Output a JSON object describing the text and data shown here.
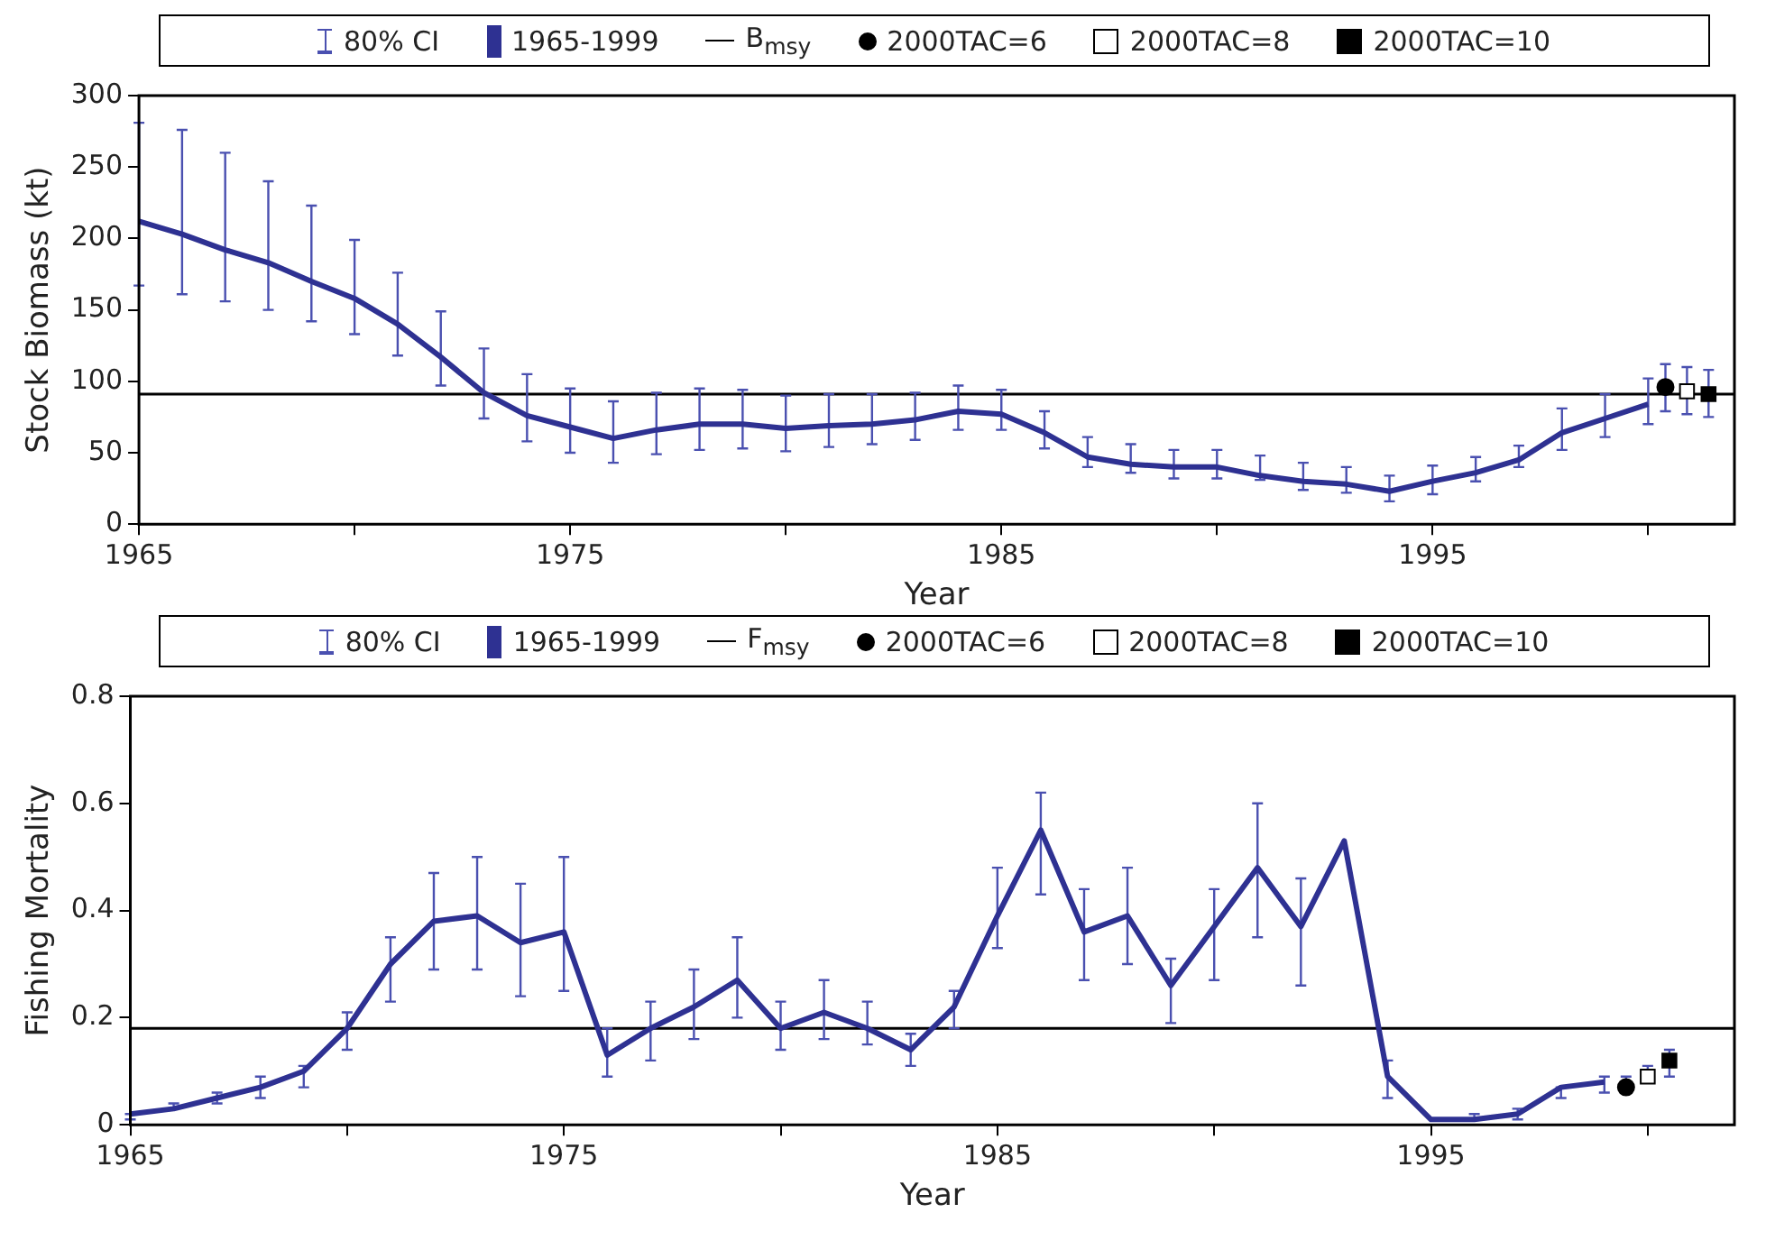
{
  "chart_data": [
    {
      "type": "line",
      "xlabel": "Year",
      "ylabel": "Stock Biomass (kt)",
      "annotations": [
        "80% CI"
      ],
      "legend": "top",
      "grid": false,
      "xlim": [
        1965,
        2002
      ],
      "xticks": [
        1965,
        {
          "value": 1970,
          "label": null
        },
        1975,
        {
          "value": 1980,
          "label": null
        },
        1985,
        {
          "value": 1990,
          "label": null
        },
        1995,
        {
          "value": 2000,
          "label": null
        }
      ],
      "ylim": [
        0,
        300
      ],
      "yticks": [
        0,
        50,
        100,
        150,
        200,
        250,
        300
      ],
      "series": [
        {
          "name": "1965-1999",
          "type": "line",
          "marker": "none",
          "color": "#2e3192",
          "x": [
            1965,
            1966,
            1967,
            1968,
            1969,
            1970,
            1971,
            1972,
            1973,
            1974,
            1975,
            1976,
            1977,
            1978,
            1979,
            1980,
            1981,
            1982,
            1983,
            1984,
            1985,
            1986,
            1987,
            1988,
            1989,
            1990,
            1991,
            1992,
            1993,
            1994,
            1995,
            1996,
            1997,
            1998,
            1999,
            2000
          ],
          "values": [
            212,
            203,
            192,
            183,
            170,
            158,
            140,
            117,
            92,
            76,
            68,
            60,
            66,
            70,
            70,
            67,
            69,
            70,
            73,
            79,
            77,
            64,
            47,
            42,
            40,
            40,
            34,
            30,
            28,
            23,
            30,
            36,
            45,
            64,
            74,
            84
          ],
          "errors": [
            [
              167,
              281
            ],
            [
              161,
              276
            ],
            [
              156,
              260
            ],
            [
              150,
              240
            ],
            [
              142,
              223
            ],
            [
              133,
              199
            ],
            [
              118,
              176
            ],
            [
              97,
              149
            ],
            [
              74,
              123
            ],
            [
              58,
              105
            ],
            [
              50,
              95
            ],
            [
              43,
              86
            ],
            [
              49,
              92
            ],
            [
              52,
              95
            ],
            [
              53,
              94
            ],
            [
              51,
              90
            ],
            [
              54,
              91
            ],
            [
              56,
              91
            ],
            [
              59,
              92
            ],
            [
              66,
              97
            ],
            [
              66,
              94
            ],
            [
              53,
              79
            ],
            [
              40,
              61
            ],
            [
              36,
              56
            ],
            [
              32,
              52
            ],
            [
              32,
              52
            ],
            [
              31,
              48
            ],
            [
              24,
              43
            ],
            [
              22,
              40
            ],
            [
              16,
              34
            ],
            [
              21,
              41
            ],
            [
              30,
              47
            ],
            [
              40,
              55
            ],
            [
              52,
              81
            ],
            [
              61,
              91
            ],
            [
              70,
              102
            ]
          ]
        },
        {
          "name": "2000TAC=6",
          "type": "scatter",
          "marker": "circle",
          "color": "#000000",
          "x": [
            2000.4
          ],
          "values": [
            96
          ],
          "errors": [
            [
              79,
              112
            ]
          ]
        },
        {
          "name": "2000TAC=8",
          "type": "scatter",
          "marker": "square",
          "color": "#ffffff",
          "x": [
            2000.9
          ],
          "values": [
            93
          ],
          "errors": [
            [
              77,
              110
            ]
          ]
        },
        {
          "name": "2000TAC=10",
          "type": "scatter",
          "marker": "square",
          "color": "#000000",
          "x": [
            2001.4
          ],
          "values": [
            91
          ],
          "errors": [
            [
              75,
              108
            ]
          ]
        }
      ],
      "ref_lines": [
        {
          "axis": "y",
          "value": 91,
          "label": "B$_{msy}$",
          "color": "#000000"
        }
      ]
    },
    {
      "type": "line",
      "xlabel": "Year",
      "ylabel": "Fishing Mortality",
      "annotations": [
        "80% CI"
      ],
      "legend": "top",
      "grid": false,
      "xlim": [
        1965,
        2002
      ],
      "xticks": [
        1965,
        {
          "value": 1970,
          "label": null
        },
        1975,
        {
          "value": 1980,
          "label": null
        },
        1985,
        {
          "value": 1990,
          "label": null
        },
        1995,
        {
          "value": 2000,
          "label": null
        }
      ],
      "ylim": [
        0,
        0.8
      ],
      "yticks": [
        0,
        0.2,
        0.4,
        0.6,
        0.8
      ],
      "series": [
        {
          "name": "1965-1999",
          "type": "line",
          "marker": "none",
          "color": "#2e3192",
          "x": [
            1965,
            1966,
            1967,
            1968,
            1969,
            1970,
            1971,
            1972,
            1973,
            1974,
            1975,
            1976,
            1977,
            1978,
            1979,
            1980,
            1981,
            1982,
            1983,
            1984,
            1985,
            1986,
            1987,
            1988,
            1989,
            1990,
            1991,
            1992,
            1993,
            1994,
            1995,
            1996,
            1997,
            1998,
            1999
          ],
          "values": [
            0.02,
            0.03,
            0.05,
            0.07,
            0.1,
            0.18,
            0.3,
            0.38,
            0.39,
            0.34,
            0.36,
            0.13,
            0.18,
            0.22,
            0.27,
            0.18,
            0.21,
            0.18,
            0.14,
            0.22,
            0.39,
            0.55,
            0.36,
            0.39,
            0.26,
            0.37,
            0.48,
            0.37,
            0.53,
            0.09,
            0.01,
            0.01,
            0.02,
            0.07,
            0.08
          ],
          "errors": [
            [
              0.01,
              0.02
            ],
            [
              0.03,
              0.04
            ],
            [
              0.04,
              0.06
            ],
            [
              0.05,
              0.09
            ],
            [
              0.07,
              0.11
            ],
            [
              0.14,
              0.21
            ],
            [
              0.23,
              0.35
            ],
            [
              0.29,
              0.47
            ],
            [
              0.29,
              0.5
            ],
            [
              0.24,
              0.45
            ],
            [
              0.25,
              0.5
            ],
            [
              0.09,
              0.18
            ],
            [
              0.12,
              0.23
            ],
            [
              0.16,
              0.29
            ],
            [
              0.2,
              0.35
            ],
            [
              0.14,
              0.23
            ],
            [
              0.16,
              0.27
            ],
            [
              0.15,
              0.23
            ],
            [
              0.11,
              0.17
            ],
            [
              0.18,
              0.25
            ],
            [
              0.33,
              0.48
            ],
            [
              0.43,
              0.62
            ],
            [
              0.27,
              0.44
            ],
            [
              0.3,
              0.48
            ],
            [
              0.19,
              0.31
            ],
            [
              0.27,
              0.44
            ],
            [
              0.35,
              0.6
            ],
            [
              0.26,
              0.46
            ],
            null,
            [
              0.05,
              0.12
            ],
            null,
            [
              0.01,
              0.02
            ],
            [
              0.01,
              0.03
            ],
            [
              0.05,
              0.07
            ],
            [
              0.06,
              0.09
            ]
          ]
        },
        {
          "name": "2000TAC=6",
          "type": "scatter",
          "marker": "circle",
          "color": "#000000",
          "x": [
            1999.5
          ],
          "values": [
            0.07
          ],
          "errors": [
            [
              0.06,
              0.09
            ]
          ]
        },
        {
          "name": "2000TAC=8",
          "type": "scatter",
          "marker": "square",
          "color": "#ffffff",
          "x": [
            2000
          ],
          "values": [
            0.09
          ],
          "errors": [
            [
              0.08,
              0.11
            ]
          ]
        },
        {
          "name": "2000TAC=10",
          "type": "scatter",
          "marker": "square",
          "color": "#000000",
          "x": [
            2000.5
          ],
          "values": [
            0.12
          ],
          "errors": [
            [
              0.09,
              0.14
            ]
          ]
        }
      ],
      "ref_lines": [
        {
          "axis": "y",
          "value": 0.18,
          "label": "F$_{msy}$",
          "color": "#000000"
        }
      ]
    }
  ]
}
